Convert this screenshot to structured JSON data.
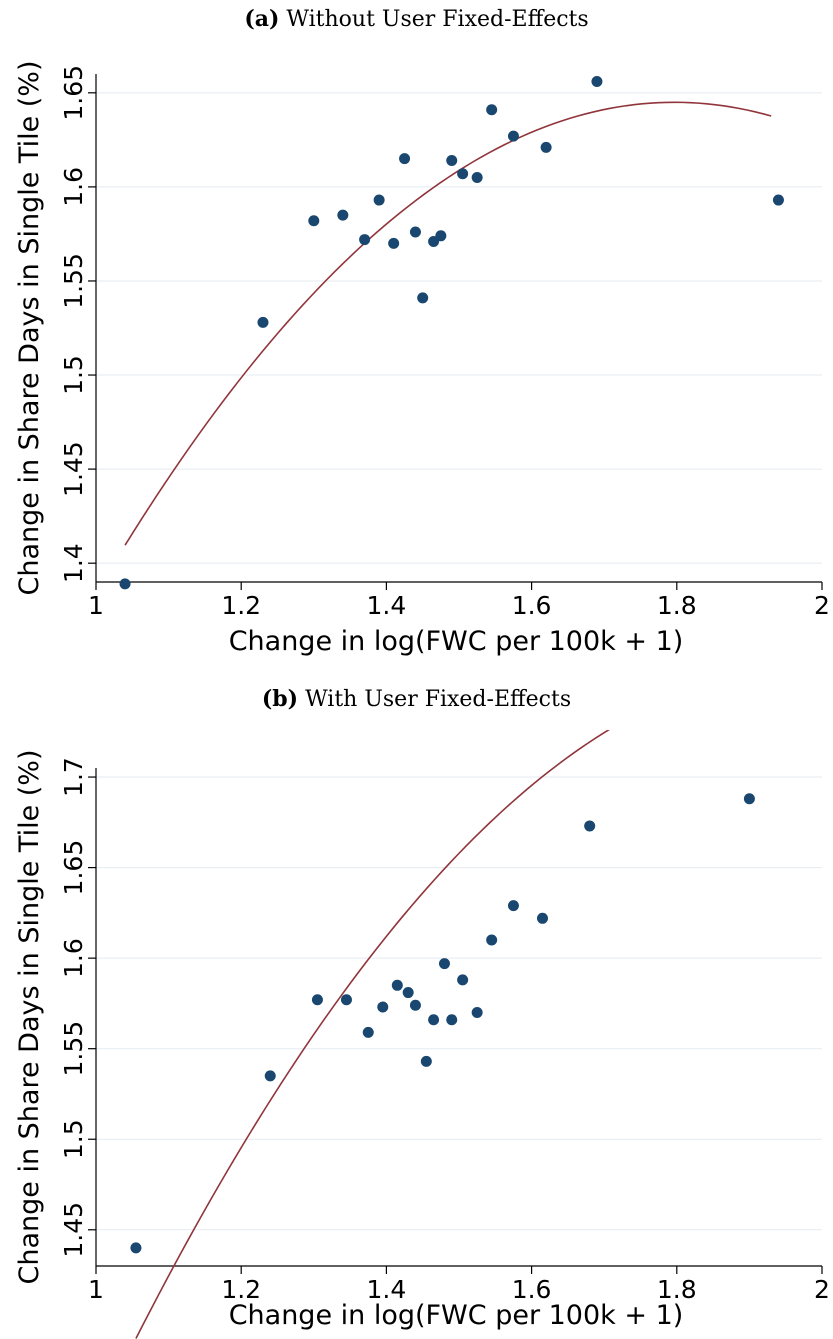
{
  "panels": [
    {
      "tag": "(a)",
      "title": "Without User Fixed-Effects"
    },
    {
      "tag": "(b)",
      "title": "With User Fixed-Effects"
    }
  ],
  "colors": {
    "points": "#1a476f",
    "fit": "#90353b",
    "grid": "#e4ebf0"
  },
  "chart_data": [
    {
      "type": "scatter",
      "title": "(a) Without User Fixed-Effects",
      "xlabel": "Change in log(FWC per 100k + 1)",
      "ylabel": "Change in Share Days in Single Tile (%)",
      "xlim": [
        1,
        2
      ],
      "ylim": [
        1.39,
        1.66
      ],
      "xticks": [
        1,
        1.2,
        1.4,
        1.6,
        1.8,
        2
      ],
      "xtick_labels": [
        "1",
        "1.2",
        "1.4",
        "1.6",
        "1.8",
        "2"
      ],
      "yticks": [
        1.4,
        1.45,
        1.5,
        1.55,
        1.6,
        1.65
      ],
      "ytick_labels": [
        "1.4",
        "1.45",
        "1.5",
        "1.55",
        "1.6",
        "1.65"
      ],
      "grid": "horizontal",
      "legend": "none",
      "series": [
        {
          "x": [
            1.04,
            1.23,
            1.3,
            1.34,
            1.37,
            1.39,
            1.41,
            1.425,
            1.44,
            1.45,
            1.465,
            1.475,
            1.49,
            1.505,
            1.525,
            1.545,
            1.575,
            1.62,
            1.69,
            1.94
          ],
          "y": [
            1.389,
            1.528,
            1.582,
            1.585,
            1.572,
            1.593,
            1.57,
            1.615,
            1.576,
            1.541,
            1.571,
            1.574,
            1.614,
            1.607,
            1.605,
            1.641,
            1.627,
            1.621,
            1.656,
            1.593
          ]
        }
      ],
      "fit": {
        "type": "quadratic",
        "x_range": [
          1.04,
          1.93
        ],
        "coefficients": [
          0.318,
          1.477,
          -0.411
        ]
      }
    },
    {
      "type": "scatter",
      "title": "(b) With User Fixed-Effects",
      "xlabel": "Change in log(FWC per 100k + 1)",
      "ylabel": "Change in Share Days in Single Tile (%)",
      "xlim": [
        1,
        2
      ],
      "ylim": [
        1.43,
        1.705
      ],
      "xticks": [
        1,
        1.2,
        1.4,
        1.6,
        1.8,
        2
      ],
      "xtick_labels": [
        "1",
        "1.2",
        "1.4",
        "1.6",
        "1.8",
        "2"
      ],
      "yticks": [
        1.45,
        1.5,
        1.55,
        1.6,
        1.65,
        1.7
      ],
      "ytick_labels": [
        "1.45",
        "1.5",
        "1.55",
        "1.6",
        "1.65",
        "1.7"
      ],
      "grid": "horizontal",
      "legend": "none",
      "series": [
        {
          "x": [
            1.055,
            1.24,
            1.305,
            1.345,
            1.375,
            1.395,
            1.415,
            1.43,
            1.44,
            1.455,
            1.465,
            1.48,
            1.49,
            1.505,
            1.525,
            1.545,
            1.575,
            1.615,
            1.68,
            1.9
          ],
          "y": [
            1.44,
            1.535,
            1.577,
            1.577,
            1.559,
            1.573,
            1.585,
            1.581,
            1.574,
            1.543,
            1.566,
            1.597,
            1.566,
            1.588,
            1.57,
            1.61,
            1.629,
            1.622,
            1.673,
            1.688
          ]
        }
      ],
      "fit": {
        "type": "quadratic",
        "x_range": [
          1.055,
          1.9
        ],
        "coefficients": [
          0.0954,
          1.6667,
          -0.4167
        ]
      }
    }
  ]
}
